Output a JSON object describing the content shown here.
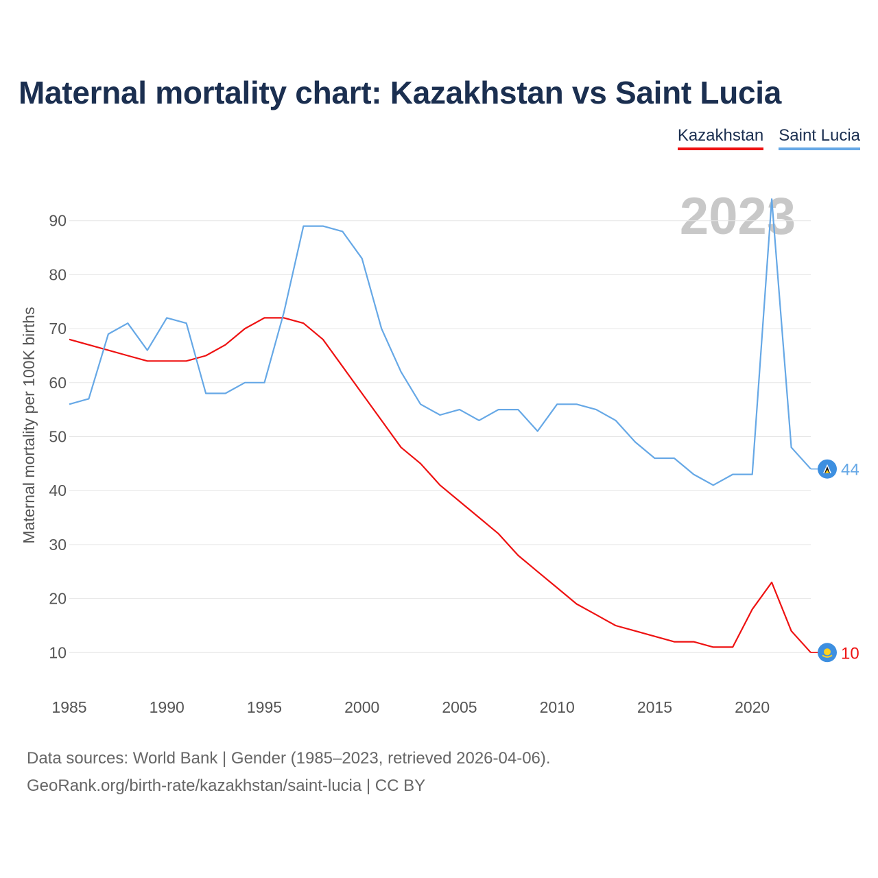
{
  "title": "Maternal mortality chart: Kazakhstan vs Saint Lucia",
  "legend": [
    {
      "label": "Kazakhstan",
      "color": "#ee1111"
    },
    {
      "label": "Saint Lucia",
      "color": "#66a8e6"
    }
  ],
  "footer": {
    "source_line": "Data sources: World Bank | Gender (1985–2023, retrieved 2026-04-06).",
    "url_line": "GeoRank.org/birth-rate/kazakhstan/saint-lucia | CC BY"
  },
  "chart_data": {
    "type": "line",
    "title": "Maternal mortality chart: Kazakhstan vs Saint Lucia",
    "year_label": "2023",
    "ylabel": "Maternal mortality per 100K births",
    "xlabel": "",
    "xlim": [
      1985,
      2023
    ],
    "ylim": [
      0,
      100
    ],
    "x_ticks": [
      "1985",
      "1990",
      "1995",
      "2000",
      "2005",
      "2010",
      "2015",
      "2020"
    ],
    "y_ticks": [
      "10",
      "20",
      "30",
      "40",
      "50",
      "60",
      "70",
      "80",
      "90"
    ],
    "grid": true,
    "x": [
      1985,
      1986,
      1987,
      1988,
      1989,
      1990,
      1991,
      1992,
      1993,
      1994,
      1995,
      1996,
      1997,
      1998,
      1999,
      2000,
      2001,
      2002,
      2003,
      2004,
      2005,
      2006,
      2007,
      2008,
      2009,
      2010,
      2011,
      2012,
      2013,
      2014,
      2015,
      2016,
      2017,
      2018,
      2019,
      2020,
      2021,
      2022,
      2023
    ],
    "series": [
      {
        "name": "Kazakhstan",
        "color": "#ee1111",
        "end_label": "10",
        "values": [
          68,
          67,
          66,
          65,
          64,
          64,
          64,
          65,
          67,
          70,
          72,
          72,
          71,
          68,
          63,
          58,
          53,
          48,
          45,
          41,
          38,
          35,
          32,
          28,
          25,
          22,
          19,
          17,
          15,
          14,
          13,
          12,
          12,
          11,
          11,
          18,
          23,
          14,
          10
        ]
      },
      {
        "name": "Saint Lucia",
        "color": "#66a8e6",
        "end_label": "44",
        "values": [
          56,
          57,
          69,
          71,
          66,
          72,
          71,
          58,
          58,
          60,
          60,
          73,
          89,
          89,
          88,
          83,
          70,
          62,
          56,
          54,
          55,
          53,
          55,
          55,
          51,
          56,
          56,
          55,
          53,
          49,
          46,
          46,
          43,
          41,
          43,
          43,
          94,
          48,
          44
        ]
      }
    ]
  }
}
